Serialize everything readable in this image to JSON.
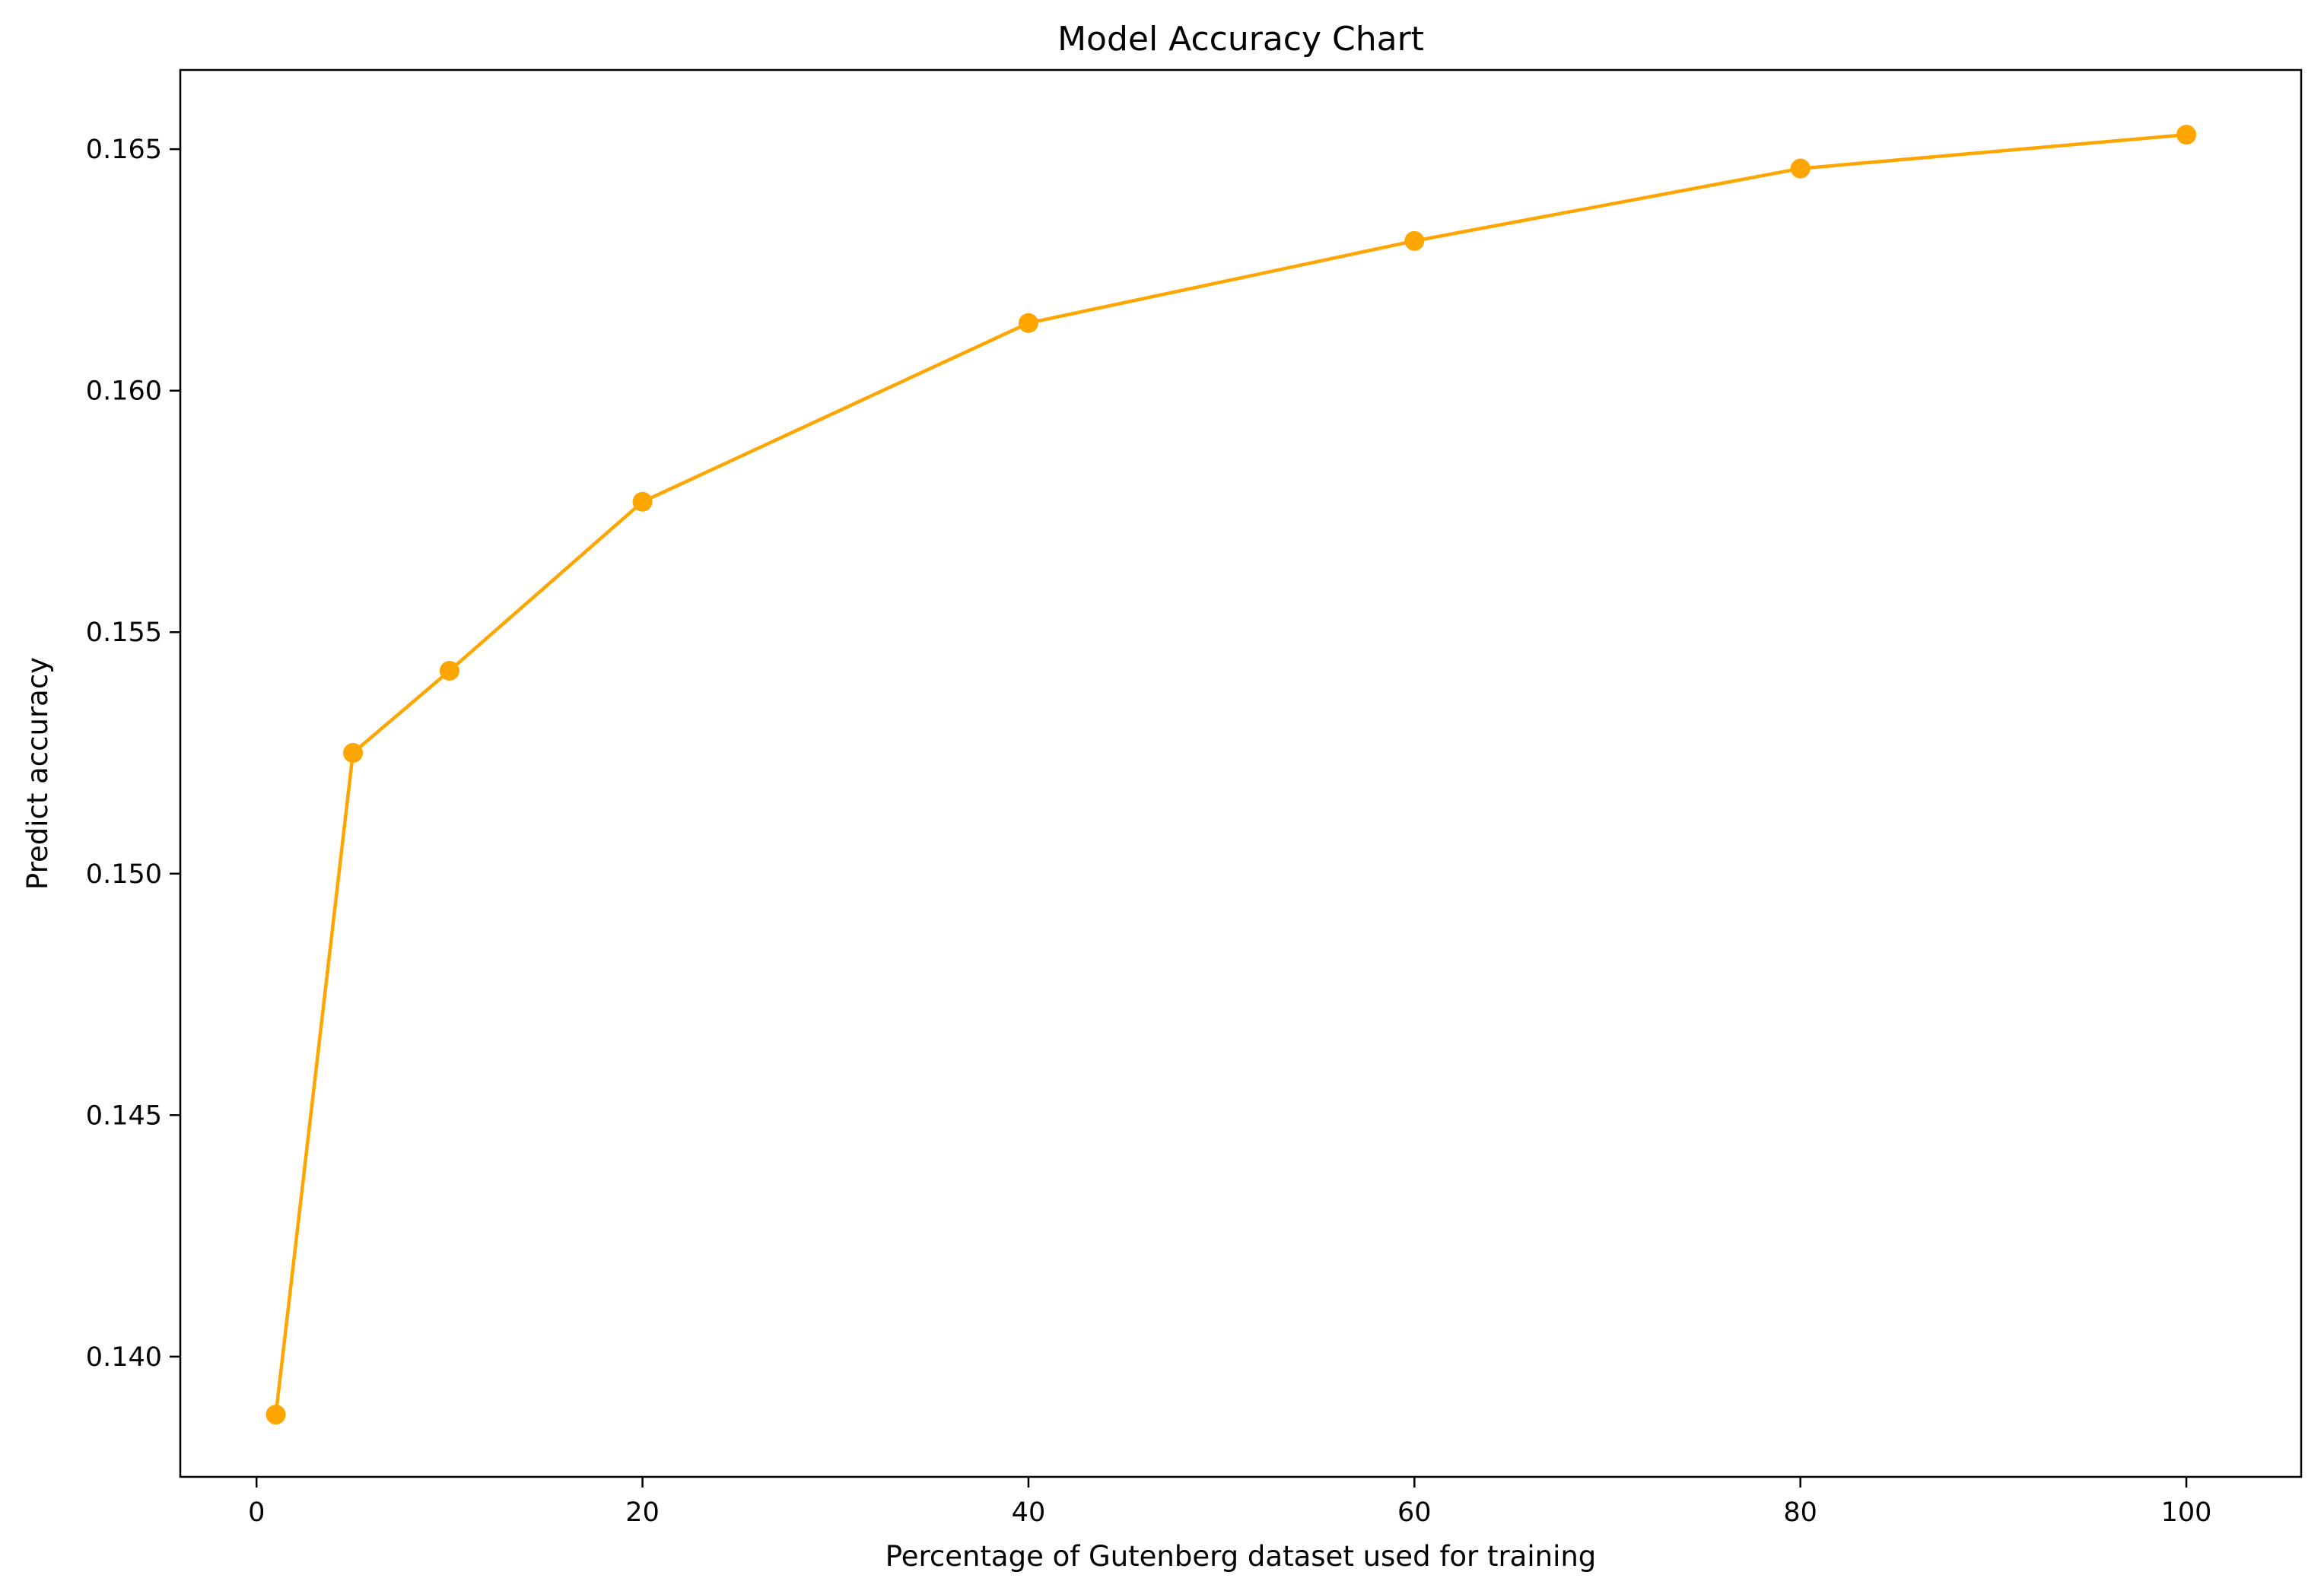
{
  "chart_data": {
    "type": "line",
    "title": "Model Accuracy Chart",
    "xlabel": "Percentage of Gutenberg dataset used for training",
    "ylabel": "Predict accuracy",
    "x": [
      1,
      5,
      10,
      20,
      40,
      60,
      80,
      100
    ],
    "series": [
      {
        "values": [
          0.1388,
          0.1525,
          0.1542,
          0.1577,
          0.1614,
          0.1631,
          0.1646,
          0.1653
        ],
        "color": "#FFA500",
        "marker": "circle"
      }
    ],
    "xlim": [
      -3.95,
      105.95
    ],
    "ylim": [
      0.13751,
      0.16664
    ],
    "xticks": [
      0,
      20,
      40,
      60,
      80,
      100
    ],
    "xtick_labels": [
      "0",
      "20",
      "40",
      "60",
      "80",
      "100"
    ],
    "yticks": [
      0.14,
      0.145,
      0.15,
      0.155,
      0.16,
      0.165
    ],
    "ytick_labels": [
      "0.140",
      "0.145",
      "0.150",
      "0.155",
      "0.160",
      "0.165"
    ],
    "grid": false,
    "legend": false
  }
}
